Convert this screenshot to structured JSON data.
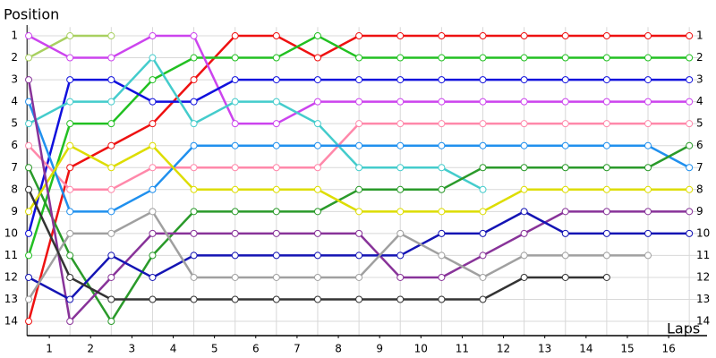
{
  "chart_data": {
    "type": "line",
    "y_label": "Position",
    "x_label": "Laps",
    "x": [
      0,
      1,
      2,
      3,
      4,
      5,
      6,
      7,
      8,
      9,
      10,
      11,
      12,
      13,
      14,
      15,
      16
    ],
    "xlim": [
      -0.04,
      16.3
    ],
    "xticks": [
      {
        "value": 0.5,
        "label": "1"
      },
      {
        "value": 1.5,
        "label": "2"
      },
      {
        "value": 2.5,
        "label": "3"
      },
      {
        "value": 3.5,
        "label": "4"
      },
      {
        "value": 4.5,
        "label": "5"
      },
      {
        "value": 5.5,
        "label": "6"
      },
      {
        "value": 6.5,
        "label": "7"
      },
      {
        "value": 7.5,
        "label": "8"
      },
      {
        "value": 8.5,
        "label": "9"
      },
      {
        "value": 9.5,
        "label": "10"
      },
      {
        "value": 10.5,
        "label": "11"
      },
      {
        "value": 11.5,
        "label": "12"
      },
      {
        "value": 12.5,
        "label": "13"
      },
      {
        "value": 13.5,
        "label": "14"
      },
      {
        "value": 14.5,
        "label": "15"
      },
      {
        "value": 15.5,
        "label": "16"
      }
    ],
    "ylim": [
      0.6,
      14.65
    ],
    "y_inverted": true,
    "yticks": [
      1,
      2,
      3,
      4,
      5,
      6,
      7,
      8,
      9,
      10,
      11,
      12,
      13,
      14
    ],
    "grid": true,
    "series": [
      {
        "color": "#ee1111",
        "values": [
          14,
          7,
          6,
          5,
          3,
          1,
          1,
          2,
          1,
          1,
          1,
          1,
          1,
          1,
          1,
          1,
          1
        ]
      },
      {
        "color": "#22c022",
        "values": [
          11,
          5,
          5,
          3,
          2,
          2,
          2,
          1,
          2,
          2,
          2,
          2,
          2,
          2,
          2,
          2,
          2
        ]
      },
      {
        "color": "#a8d060",
        "values": [
          2,
          1,
          1,
          null,
          null,
          null,
          null,
          null,
          null,
          null,
          null,
          null,
          null,
          null,
          null,
          null,
          null
        ]
      },
      {
        "color": "#cc44ee",
        "values": [
          1,
          2,
          2,
          1,
          1,
          5,
          5,
          4,
          4,
          4,
          4,
          4,
          4,
          4,
          4,
          4,
          4
        ]
      },
      {
        "color": "#1010dd",
        "values": [
          10,
          3,
          3,
          4,
          4,
          3,
          3,
          3,
          3,
          3,
          3,
          3,
          3,
          3,
          3,
          3,
          3
        ]
      },
      {
        "color": "#44cccc",
        "values": [
          5,
          4,
          4,
          2,
          5,
          4,
          4,
          5,
          7,
          7,
          7,
          8,
          null,
          null,
          null,
          null,
          null
        ]
      },
      {
        "color": "#ff88aa",
        "values": [
          6,
          8,
          8,
          7,
          7,
          7,
          7,
          7,
          5,
          5,
          5,
          5,
          5,
          5,
          5,
          5,
          5
        ]
      },
      {
        "color": "#2090ee",
        "values": [
          4,
          9,
          9,
          8,
          6,
          6,
          6,
          6,
          6,
          6,
          6,
          6,
          6,
          6,
          6,
          6,
          7
        ]
      },
      {
        "color": "#2a9a2a",
        "values": [
          7,
          11,
          14,
          11,
          9,
          9,
          9,
          9,
          8,
          8,
          8,
          7,
          7,
          7,
          7,
          7,
          6
        ]
      },
      {
        "color": "#dddd00",
        "values": [
          9,
          6,
          7,
          6,
          8,
          8,
          8,
          8,
          9,
          9,
          9,
          9,
          8,
          8,
          8,
          8,
          8
        ]
      },
      {
        "color": "#883399",
        "values": [
          3,
          14,
          12,
          10,
          10,
          10,
          10,
          10,
          10,
          12,
          12,
          11,
          10,
          9,
          9,
          9,
          9
        ]
      },
      {
        "color": "#1414b4",
        "values": [
          12,
          13,
          11,
          12,
          11,
          11,
          11,
          11,
          11,
          11,
          10,
          10,
          9,
          10,
          10,
          10,
          10
        ]
      },
      {
        "color": "#a0a0a0",
        "values": [
          13,
          10,
          10,
          9,
          12,
          12,
          12,
          12,
          12,
          10,
          11,
          12,
          11,
          11,
          11,
          11,
          null
        ]
      },
      {
        "color": "#333333",
        "values": [
          8,
          12,
          13,
          13,
          13,
          13,
          13,
          13,
          13,
          13,
          13,
          13,
          12,
          12,
          12,
          null,
          null
        ]
      }
    ]
  }
}
